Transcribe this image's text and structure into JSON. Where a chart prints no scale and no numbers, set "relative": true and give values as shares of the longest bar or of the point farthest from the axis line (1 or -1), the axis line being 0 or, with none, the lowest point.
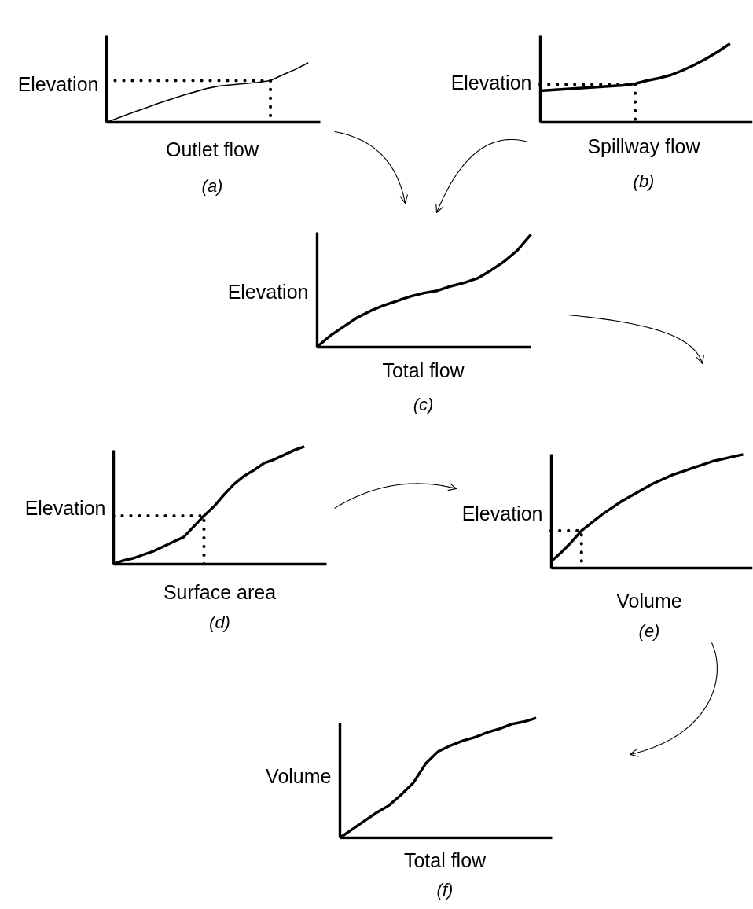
{
  "chart_data": [
    {
      "type": "line",
      "relative": true,
      "xlabel": "Outlet flow",
      "ylabel": "Elevation",
      "annotations": [
        "(a)"
      ],
      "categories": [
        null,
        null,
        null,
        null,
        null,
        null,
        null,
        null,
        null,
        null,
        null,
        null,
        null,
        null,
        null,
        null,
        null
      ],
      "series": [
        {
          "color": "#000000",
          "values": [
            0,
            0.08,
            0.16,
            0.23,
            0.31,
            0.38,
            0.45,
            0.51,
            0.57,
            0.61,
            0.63,
            0.65,
            0.67,
            0.7,
            0.8,
            0.89,
            1
          ]
        },
        {
          "type": "step",
          "line_style": "dotted",
          "color": "#000000",
          "values": [
            0.7,
            0.7,
            0.7,
            0.7,
            0.7,
            0.7,
            0.7,
            0.7,
            0.7,
            0.7,
            0.7,
            0.7,
            0.7,
            0,
            null,
            null,
            null
          ]
        }
      ]
    },
    {
      "type": "line",
      "relative": true,
      "xlabel": "Spillway flow",
      "ylabel": "Elevation",
      "annotations": [
        "(b)"
      ],
      "categories": [
        null,
        null,
        null,
        null,
        null,
        null,
        null,
        null,
        null,
        null,
        null,
        null,
        null,
        null,
        null,
        null,
        null
      ],
      "series": [
        {
          "color": "#000000",
          "values": [
            0.4,
            0.41,
            0.42,
            0.43,
            0.44,
            0.45,
            0.46,
            0.47,
            0.49,
            0.53,
            0.56,
            0.6,
            0.66,
            0.73,
            0.81,
            0.9,
            1
          ]
        },
        {
          "type": "step",
          "line_style": "dotted",
          "color": "#000000",
          "values": [
            0.48,
            0.48,
            0.48,
            0.48,
            0.48,
            0.48,
            0.48,
            0.48,
            -0.07,
            null,
            null,
            null,
            null,
            null,
            null,
            null,
            null
          ]
        }
      ]
    },
    {
      "type": "line",
      "relative": true,
      "xlabel": "Total flow",
      "ylabel": "Elevation",
      "annotations": [
        "(c)"
      ],
      "categories": [
        null,
        null,
        null,
        null,
        null,
        null,
        null,
        null,
        null,
        null,
        null,
        null,
        null,
        null,
        null,
        null,
        null
      ],
      "series": [
        {
          "color": "#000000",
          "values": [
            0,
            0.1,
            0.18,
            0.26,
            0.32,
            0.37,
            0.41,
            0.45,
            0.48,
            0.5,
            0.54,
            0.57,
            0.61,
            0.68,
            0.76,
            0.86,
            1
          ]
        }
      ]
    },
    {
      "type": "line",
      "relative": true,
      "xlabel": "Surface area",
      "ylabel": "Elevation",
      "annotations": [
        "(d)"
      ],
      "categories": [
        null,
        null,
        null,
        null,
        null,
        null,
        null,
        null,
        null,
        null,
        null,
        null,
        null,
        null,
        null,
        null,
        null,
        null,
        null,
        null
      ],
      "series": [
        {
          "color": "#000000",
          "values": [
            0,
            0.03,
            0.05,
            0.08,
            0.11,
            0.15,
            0.19,
            0.23,
            0.32,
            0.41,
            0.49,
            0.59,
            0.68,
            0.75,
            0.8,
            0.86,
            0.89,
            0.93,
            0.97,
            1
          ]
        },
        {
          "type": "step",
          "line_style": "dotted",
          "color": "#000000",
          "values": [
            0.41,
            0.41,
            0.41,
            0.41,
            0.41,
            0.41,
            0.41,
            0.41,
            0.41,
            0,
            null,
            null,
            null,
            null,
            null,
            null,
            null,
            null,
            null,
            null
          ]
        }
      ]
    },
    {
      "type": "line",
      "relative": true,
      "xlabel": "Volume",
      "ylabel": "Elevation",
      "annotations": [
        "(e)"
      ],
      "categories": [
        null,
        null,
        null,
        null,
        null,
        null,
        null,
        null,
        null,
        null,
        null,
        null,
        null,
        null,
        null,
        null,
        null,
        null,
        null,
        null
      ],
      "series": [
        {
          "color": "#000000",
          "values": [
            0.06,
            0.14,
            0.23,
            0.33,
            0.4,
            0.47,
            0.53,
            0.59,
            0.64,
            0.69,
            0.74,
            0.78,
            0.82,
            0.85,
            0.88,
            0.91,
            0.94,
            0.96,
            0.98,
            1
          ]
        },
        {
          "type": "step",
          "line_style": "dotted",
          "color": "#000000",
          "values": [
            0.33,
            0.33,
            0.33,
            0,
            null,
            null,
            null,
            null,
            null,
            null,
            null,
            null,
            null,
            null,
            null,
            null,
            null,
            null,
            null,
            null
          ]
        }
      ]
    },
    {
      "type": "line",
      "relative": true,
      "xlabel": "Total flow",
      "ylabel": "Volume",
      "annotations": [
        "(f)"
      ],
      "categories": [
        null,
        null,
        null,
        null,
        null,
        null,
        null,
        null,
        null,
        null,
        null,
        null,
        null,
        null,
        null,
        null,
        null
      ],
      "series": [
        {
          "color": "#000000",
          "values": [
            0,
            0.07,
            0.14,
            0.21,
            0.27,
            0.36,
            0.46,
            0.62,
            0.72,
            0.77,
            0.81,
            0.84,
            0.88,
            0.91,
            0.95,
            0.97,
            1
          ]
        }
      ]
    }
  ]
}
